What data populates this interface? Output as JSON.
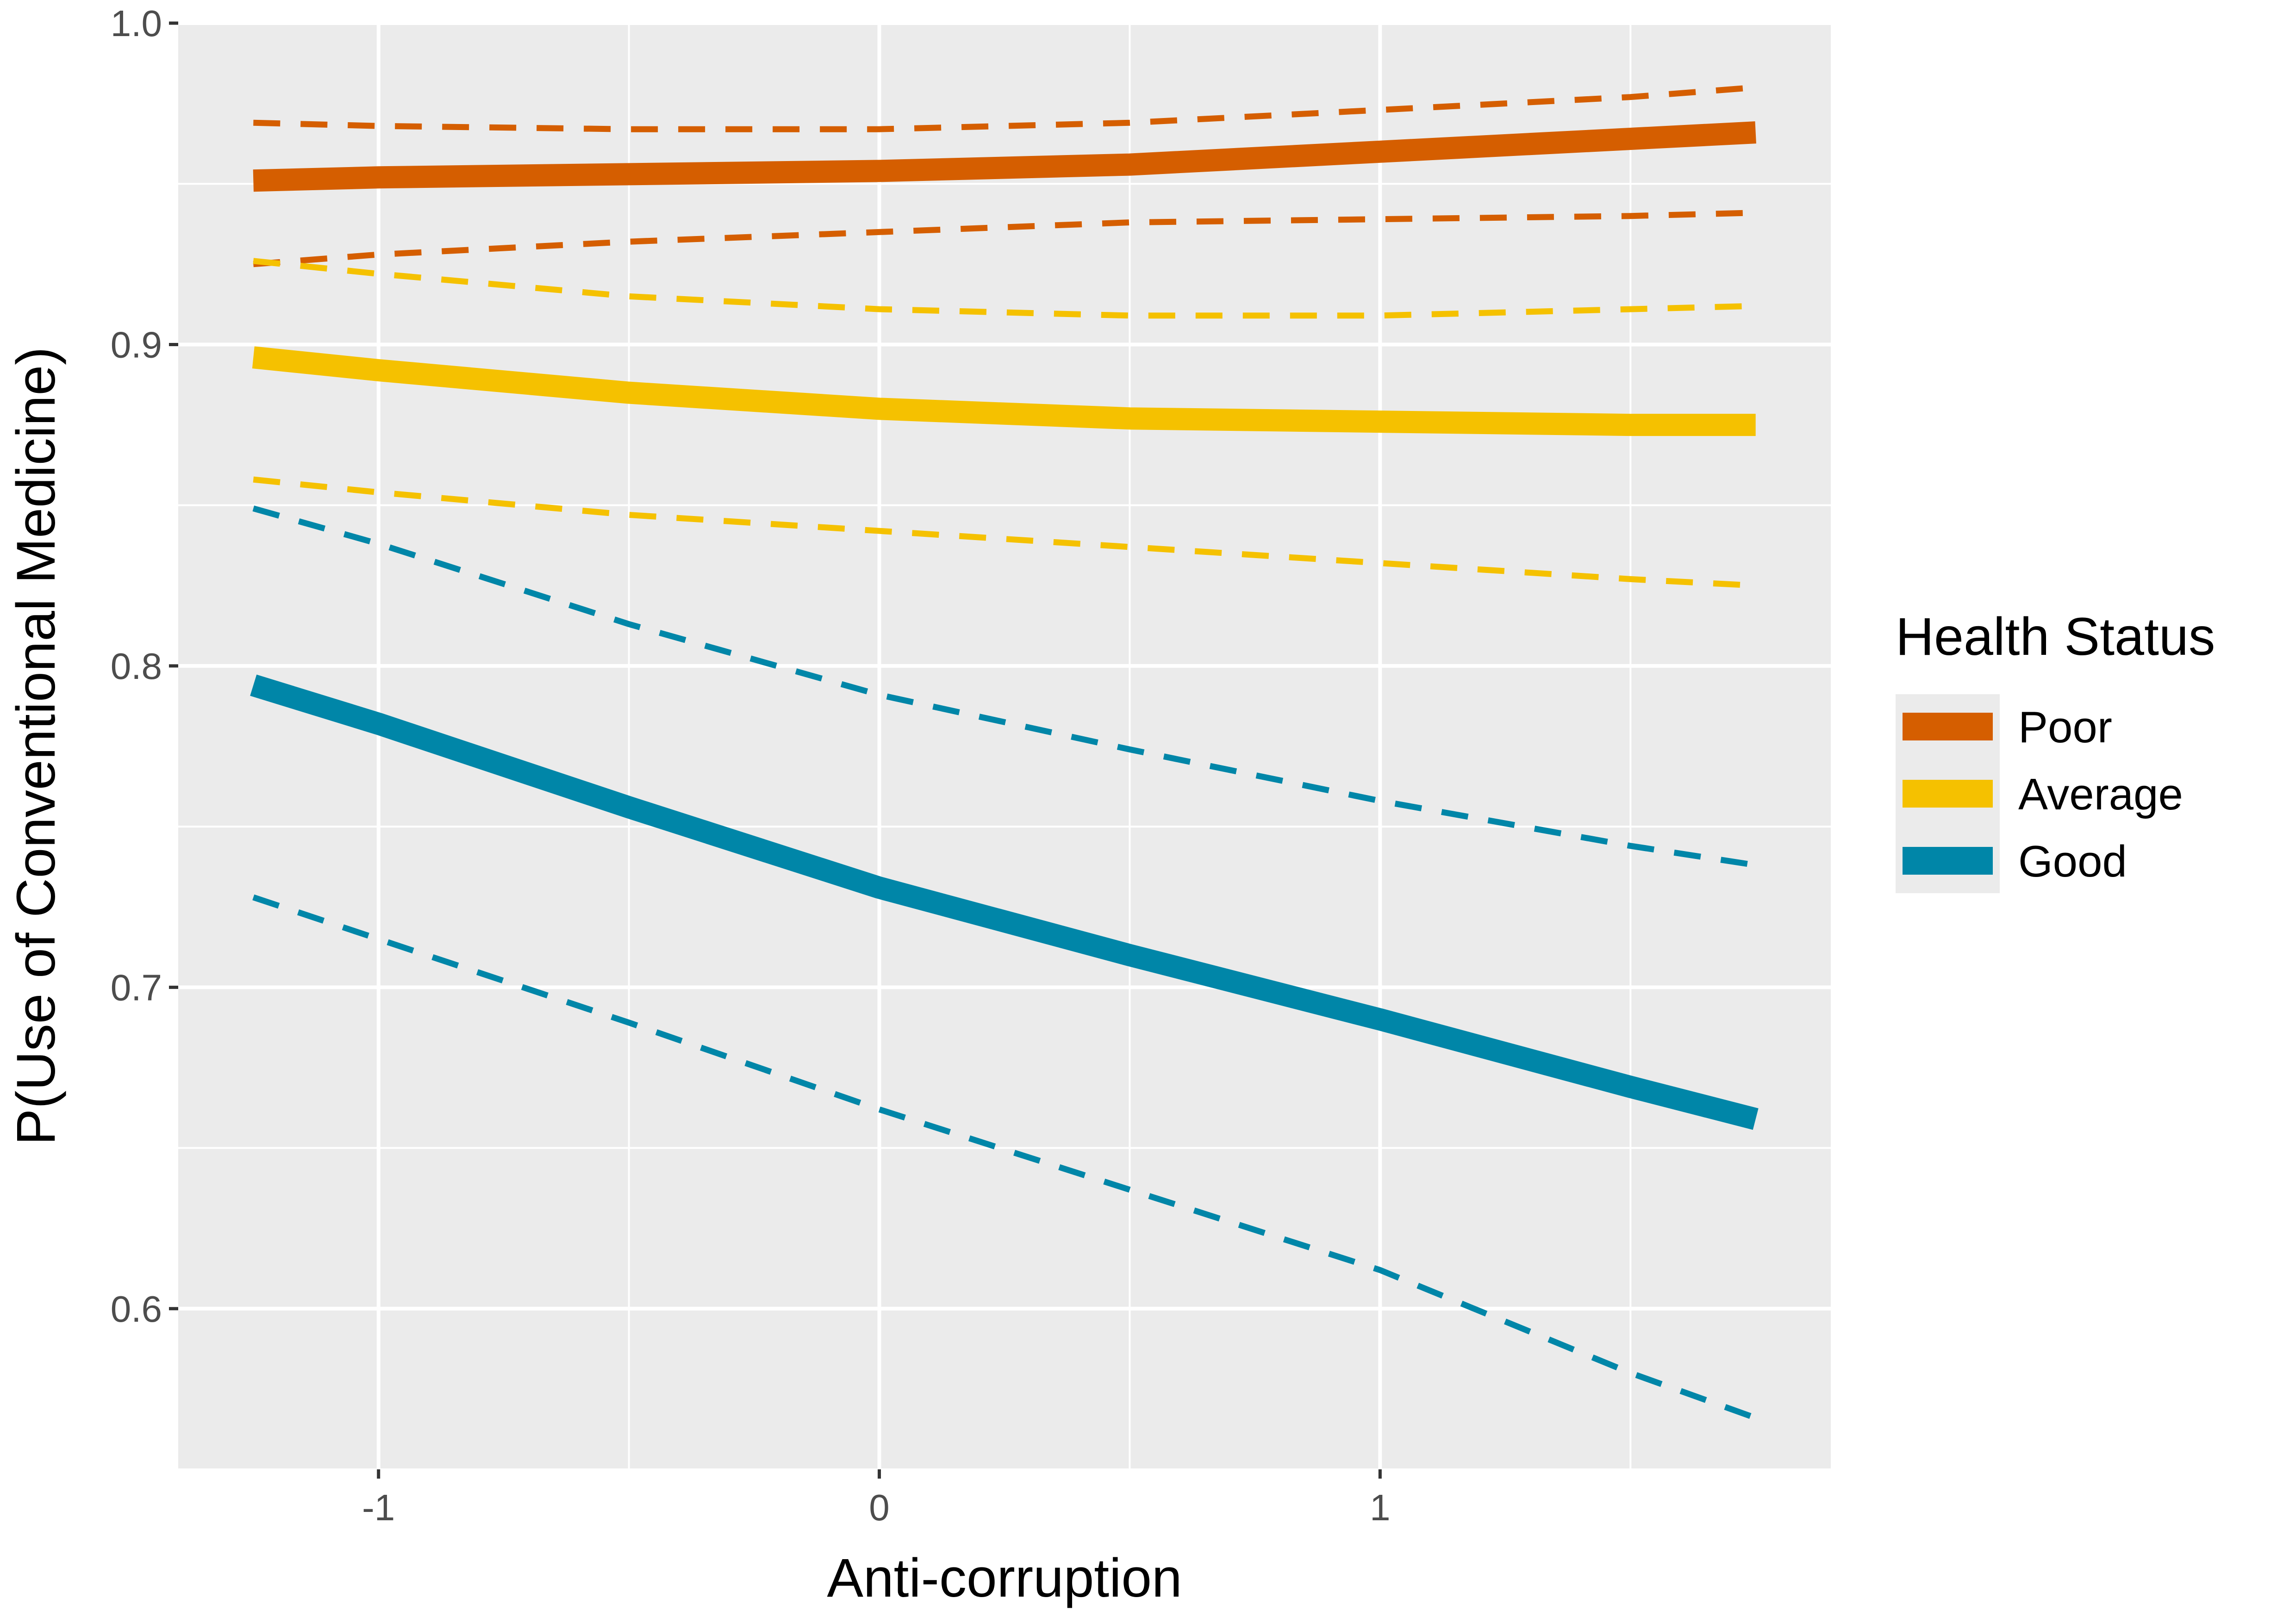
{
  "chart_data": {
    "type": "line",
    "title": "",
    "xlabel": "Anti-corruption",
    "ylabel": "P(Use of Conventional Medicine)",
    "xlim": [
      -1.4,
      1.9
    ],
    "ylim": [
      0.55,
      1.0
    ],
    "x_ticks": [
      -1,
      0,
      1
    ],
    "x_tick_labels": [
      "-1",
      "0",
      "1"
    ],
    "y_ticks": [
      0.6,
      0.7,
      0.8,
      0.9,
      1.0
    ],
    "y_tick_labels": [
      "0.6",
      "0.7",
      "0.8",
      "0.9",
      "1.0"
    ],
    "grid": true,
    "legend": {
      "title": "Health Status",
      "position": "right"
    },
    "x": [
      -1.25,
      -1.0,
      -0.5,
      0.0,
      0.5,
      1.0,
      1.5,
      1.75
    ],
    "series": [
      {
        "name": "Poor",
        "color": "#D55E00",
        "values": [
          0.951,
          0.952,
          0.953,
          0.954,
          0.956,
          0.96,
          0.964,
          0.966
        ],
        "lower": [
          0.925,
          0.928,
          0.932,
          0.935,
          0.938,
          0.939,
          0.94,
          0.941
        ],
        "upper": [
          0.969,
          0.968,
          0.967,
          0.967,
          0.969,
          0.973,
          0.977,
          0.98
        ]
      },
      {
        "name": "Average",
        "color": "#F5C100",
        "values": [
          0.896,
          0.892,
          0.885,
          0.88,
          0.877,
          0.876,
          0.875,
          0.875
        ],
        "lower": [
          0.858,
          0.854,
          0.847,
          0.842,
          0.837,
          0.832,
          0.827,
          0.825
        ],
        "upper": [
          0.926,
          0.922,
          0.915,
          0.911,
          0.909,
          0.909,
          0.911,
          0.912
        ]
      },
      {
        "name": "Good",
        "color": "#0086A8",
        "values": [
          0.794,
          0.782,
          0.756,
          0.731,
          0.71,
          0.69,
          0.669,
          0.659
        ],
        "lower": [
          0.728,
          0.715,
          0.689,
          0.662,
          0.637,
          0.612,
          0.58,
          0.566
        ],
        "upper": [
          0.849,
          0.838,
          0.813,
          0.791,
          0.774,
          0.758,
          0.744,
          0.738
        ]
      }
    ]
  }
}
